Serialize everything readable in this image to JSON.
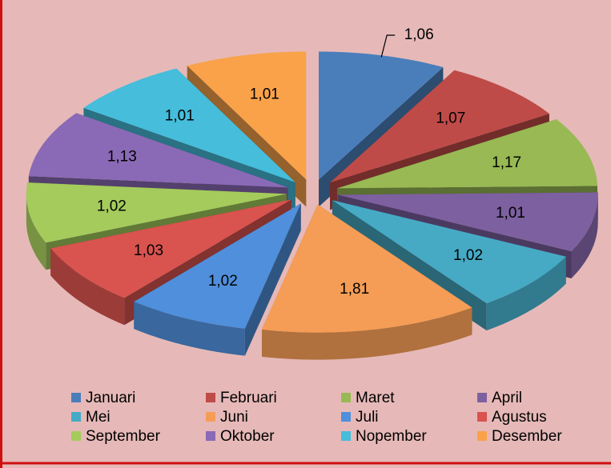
{
  "chart_data": {
    "type": "pie3d",
    "categories": [
      "Januari",
      "Februari",
      "Maret",
      "April",
      "Mei",
      "Juni",
      "Juli",
      "Agustus",
      "September",
      "Oktober",
      "Nopember",
      "Desember"
    ],
    "values": [
      1.06,
      1.07,
      1.17,
      1.01,
      1.02,
      1.81,
      1.02,
      1.03,
      1.02,
      1.13,
      1.01,
      1.01
    ],
    "value_labels": [
      "1,06",
      "1,07",
      "1,17",
      "1,01",
      "1,02",
      "1,81",
      "1,02",
      "1,03",
      "1,02",
      "1,13",
      "1,01",
      "1,01"
    ],
    "colors": [
      "#4a7ebb",
      "#be4b48",
      "#98b954",
      "#7d60a0",
      "#46aac5",
      "#f59d56",
      "#4f8fdb",
      "#d9534f",
      "#a4cb5c",
      "#8a6ab6",
      "#45bddb",
      "#f9a24a"
    ],
    "legend": "bottom"
  }
}
